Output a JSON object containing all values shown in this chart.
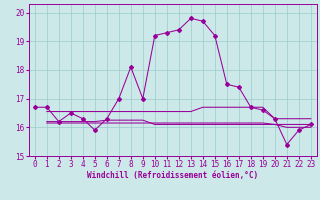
{
  "xlabel": "Windchill (Refroidissement éolien,°C)",
  "background_color": "#cce8e8",
  "line_color": "#990099",
  "grid_color": "#99cccc",
  "xlim": [
    -0.5,
    23.5
  ],
  "ylim": [
    15.0,
    20.3
  ],
  "yticks": [
    15,
    16,
    17,
    18,
    19,
    20
  ],
  "xticks": [
    0,
    1,
    2,
    3,
    4,
    5,
    6,
    7,
    8,
    9,
    10,
    11,
    12,
    13,
    14,
    15,
    16,
    17,
    18,
    19,
    20,
    21,
    22,
    23
  ],
  "series": [
    {
      "x": [
        0,
        1,
        2,
        3,
        4,
        5,
        6,
        7,
        8,
        9,
        10,
        11,
        12,
        13,
        14,
        15,
        16,
        17,
        18,
        19,
        20,
        21,
        22,
        23
      ],
      "y": [
        16.7,
        16.7,
        16.2,
        16.5,
        16.3,
        15.9,
        16.3,
        17.0,
        18.1,
        17.0,
        19.2,
        19.3,
        19.4,
        19.8,
        19.7,
        19.2,
        17.5,
        17.4,
        16.7,
        16.6,
        16.3,
        15.4,
        15.9,
        16.1
      ],
      "marker": "D",
      "markersize": 2.0
    },
    {
      "x": [
        1,
        2,
        3,
        4,
        5,
        6,
        7,
        8,
        9,
        10,
        11,
        12,
        13,
        14,
        15,
        16,
        17,
        18,
        19,
        20,
        21,
        22,
        23
      ],
      "y": [
        16.55,
        16.55,
        16.55,
        16.55,
        16.55,
        16.55,
        16.55,
        16.55,
        16.55,
        16.55,
        16.55,
        16.55,
        16.55,
        16.7,
        16.7,
        16.7,
        16.7,
        16.7,
        16.7,
        16.3,
        16.3,
        16.3,
        16.3
      ],
      "marker": null,
      "markersize": 0
    },
    {
      "x": [
        1,
        2,
        3,
        4,
        5,
        6,
        7,
        8,
        9,
        10,
        11,
        12,
        13,
        14,
        15,
        16,
        17,
        18,
        19,
        20,
        21,
        22,
        23
      ],
      "y": [
        16.2,
        16.2,
        16.2,
        16.2,
        16.2,
        16.25,
        16.25,
        16.25,
        16.25,
        16.1,
        16.1,
        16.1,
        16.1,
        16.1,
        16.1,
        16.1,
        16.1,
        16.1,
        16.1,
        16.1,
        16.0,
        16.0,
        16.0
      ],
      "marker": null,
      "markersize": 0
    },
    {
      "x": [
        1,
        2,
        3,
        4,
        5,
        6,
        7,
        8,
        9,
        10,
        11,
        12,
        13,
        14,
        15,
        16,
        17,
        18,
        19,
        20,
        21,
        22,
        23
      ],
      "y": [
        16.15,
        16.15,
        16.15,
        16.15,
        16.15,
        16.15,
        16.15,
        16.15,
        16.15,
        16.15,
        16.15,
        16.15,
        16.15,
        16.15,
        16.15,
        16.15,
        16.15,
        16.15,
        16.15,
        16.1,
        16.1,
        16.1,
        16.1
      ],
      "marker": null,
      "markersize": 0
    }
  ],
  "xlabel_fontsize": 5.5,
  "tick_fontsize": 5.5,
  "linewidth": 0.75
}
